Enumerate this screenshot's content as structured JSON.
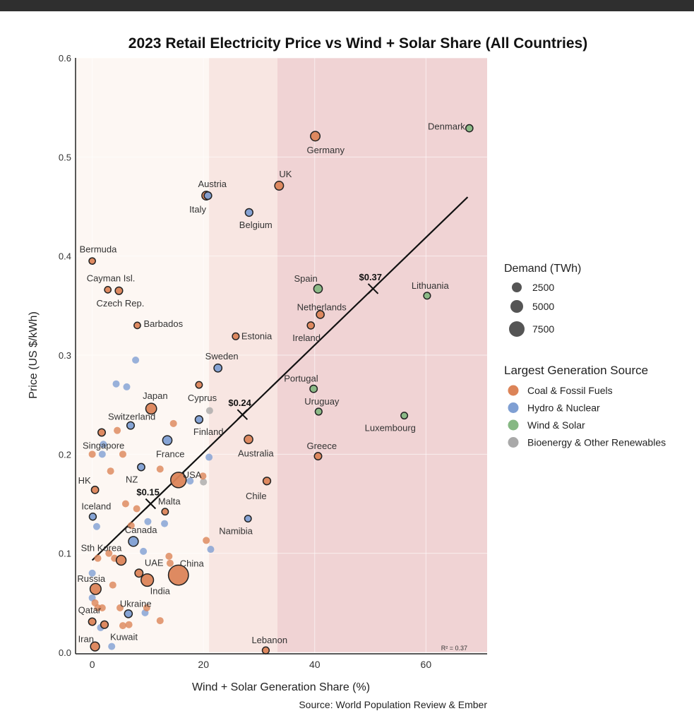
{
  "chart_data": {
    "type": "scatter",
    "title": "2023 Retail Electricity Price vs Wind + Solar Share (All Countries)",
    "xlabel": "Wind + Solar Generation Share (%)",
    "ylabel": "Price (US $/kWh)",
    "source": "Source: World Population Review & Ember",
    "xlim": [
      -3,
      71
    ],
    "ylim": [
      0,
      0.6
    ],
    "xticks": [
      0,
      20,
      40,
      60
    ],
    "yticks": [
      0.0,
      0.1,
      0.2,
      0.3,
      0.4,
      0.5,
      0.6
    ],
    "ytick_labels": [
      "0.0",
      "0.1",
      "0.2",
      "0.3",
      "0.4",
      "0.5",
      "0.6"
    ],
    "grid": true,
    "background_bands": [
      {
        "from": -3,
        "to": 21,
        "color": "#fdf7f3"
      },
      {
        "from": 21,
        "to": 33.3,
        "color": "#f8e6e2"
      },
      {
        "from": 33.3,
        "to": 71,
        "color": "#f0d3d4"
      }
    ],
    "colors": {
      "coal": "#dc8458",
      "hydro": "#7f9fd3",
      "wind": "#86b883",
      "bio": "#a9a9a9"
    },
    "legend": {
      "size_title": "Demand (TWh)",
      "sizes": [
        {
          "label": "2500",
          "value": 2500
        },
        {
          "label": "5000",
          "value": 5000
        },
        {
          "label": "7500",
          "value": 7500
        }
      ],
      "color_title": "Largest Generation Source",
      "colors": [
        {
          "key": "coal",
          "label": "Coal & Fossil Fuels"
        },
        {
          "key": "hydro",
          "label": "Hydro & Nuclear"
        },
        {
          "key": "wind",
          "label": "Wind & Solar"
        },
        {
          "key": "bio",
          "label": "Bioenergy & Other Renewables"
        }
      ],
      "placement": "right"
    },
    "trendline": {
      "slope": 0.00543,
      "intercept": 0.093,
      "x_range": [
        0,
        67.5
      ],
      "r2_label": "R² = 0.37"
    },
    "trend_markers": [
      {
        "x": 10.5,
        "y": 0.15,
        "label": "$0.15"
      },
      {
        "x": 27,
        "y": 0.24,
        "label": "$0.24"
      },
      {
        "x": 50.5,
        "y": 0.367,
        "label": "$0.37"
      }
    ],
    "points": [
      {
        "name": "Denmark",
        "x": 67.8,
        "y": 0.529,
        "src": "wind",
        "d": 35,
        "lx": -6,
        "ly": 2,
        "anchor": "end"
      },
      {
        "name": "Germany",
        "x": 40.1,
        "y": 0.521,
        "src": "coal",
        "d": 500,
        "lx": -12,
        "ly": 24,
        "anchor": "start"
      },
      {
        "name": "UK",
        "x": 33.6,
        "y": 0.471,
        "src": "coal",
        "d": 300,
        "lx": 0,
        "ly": -12,
        "anchor": "start"
      },
      {
        "name": "Italy",
        "x": 20.5,
        "y": 0.461,
        "src": "coal",
        "d": 300,
        "lx": -24,
        "ly": 24,
        "anchor": "start"
      },
      {
        "name": "Austria",
        "x": 20.8,
        "y": 0.461,
        "src": "hydro",
        "d": 70,
        "lx": -14,
        "ly": -12,
        "anchor": "start"
      },
      {
        "name": "Belgium",
        "x": 28.2,
        "y": 0.444,
        "src": "hydro",
        "d": 85,
        "lx": -14,
        "ly": 22,
        "anchor": "start"
      },
      {
        "name": "Bermuda",
        "x": 0,
        "y": 0.395,
        "src": "coal",
        "d": 1,
        "lx": -18,
        "ly": -12,
        "anchor": "start"
      },
      {
        "name": "Cayman Isl.",
        "x": 2.8,
        "y": 0.366,
        "src": "coal",
        "d": 1,
        "lx": -30,
        "ly": -12,
        "anchor": "start"
      },
      {
        "name": "Czech Rep.",
        "x": 4.8,
        "y": 0.365,
        "src": "coal",
        "d": 65,
        "lx": -32,
        "ly": 22,
        "anchor": "start"
      },
      {
        "name": "Barbados",
        "x": 8.1,
        "y": 0.33,
        "src": "coal",
        "d": 1,
        "lx": 9,
        "ly": 2,
        "anchor": "start"
      },
      {
        "name": "Estonia",
        "x": 25.8,
        "y": 0.319,
        "src": "coal",
        "d": 8,
        "lx": 8,
        "ly": 4,
        "anchor": "start"
      },
      {
        "name": "Sweden",
        "x": 22.6,
        "y": 0.287,
        "src": "hydro",
        "d": 130,
        "lx": -18,
        "ly": -12,
        "anchor": "start"
      },
      {
        "name": "Spain",
        "x": 40.6,
        "y": 0.367,
        "src": "wind",
        "d": 250,
        "lx": -34,
        "ly": -10,
        "anchor": "start"
      },
      {
        "name": "Netherlands",
        "x": 41.0,
        "y": 0.341,
        "src": "coal",
        "d": 110,
        "lx": -33,
        "ly": -6,
        "anchor": "start"
      },
      {
        "name": "Ireland",
        "x": 39.3,
        "y": 0.33,
        "src": "coal",
        "d": 30,
        "lx": -26,
        "ly": 22,
        "anchor": "start"
      },
      {
        "name": "Lithuania",
        "x": 60.2,
        "y": 0.36,
        "src": "wind",
        "d": 12,
        "lx": -22,
        "ly": -10,
        "anchor": "start"
      },
      {
        "name": "Portugal",
        "x": 39.8,
        "y": 0.266,
        "src": "wind",
        "d": 50,
        "lx": -42,
        "ly": -10,
        "anchor": "start"
      },
      {
        "name": "Uruguay",
        "x": 40.7,
        "y": 0.243,
        "src": "wind",
        "d": 12,
        "lx": -20,
        "ly": -10,
        "anchor": "start"
      },
      {
        "name": "Luxembourg",
        "x": 56.1,
        "y": 0.239,
        "src": "wind",
        "d": 6,
        "lx": -56,
        "ly": 22,
        "anchor": "start"
      },
      {
        "name": "Greece",
        "x": 40.6,
        "y": 0.198,
        "src": "coal",
        "d": 50,
        "lx": -16,
        "ly": -10,
        "anchor": "start"
      },
      {
        "name": "Australia",
        "x": 28.1,
        "y": 0.215,
        "src": "coal",
        "d": 250,
        "lx": -15,
        "ly": 24,
        "anchor": "start"
      },
      {
        "name": "Chile",
        "x": 31.4,
        "y": 0.173,
        "src": "coal",
        "d": 80,
        "lx": -30,
        "ly": 26,
        "anchor": "start"
      },
      {
        "name": "Namibia",
        "x": 28.0,
        "y": 0.135,
        "src": "hydro",
        "d": 5,
        "lx": -41,
        "ly": 22,
        "anchor": "start"
      },
      {
        "name": "Lebanon",
        "x": 31.2,
        "y": 0.002,
        "src": "coal",
        "d": 15,
        "lx": -20,
        "ly": -10,
        "anchor": "start"
      },
      {
        "name": "Cyprus",
        "x": 19.2,
        "y": 0.27,
        "src": "coal",
        "d": 5,
        "lx": -16,
        "ly": 23,
        "anchor": "start"
      },
      {
        "name": "Japan",
        "x": 10.6,
        "y": 0.246,
        "src": "coal",
        "d": 1000,
        "lx": -12,
        "ly": -14,
        "anchor": "start"
      },
      {
        "name": "Switzerland",
        "x": 6.9,
        "y": 0.229,
        "src": "hydro",
        "d": 60,
        "lx": -32,
        "ly": -8,
        "anchor": "start"
      },
      {
        "name": "Finland",
        "x": 19.2,
        "y": 0.235,
        "src": "hydro",
        "d": 85,
        "lx": -8,
        "ly": 22,
        "anchor": "start"
      },
      {
        "name": "France",
        "x": 13.5,
        "y": 0.214,
        "src": "hydro",
        "d": 450,
        "lx": -16,
        "ly": 24,
        "anchor": "start"
      },
      {
        "name": "Singapore",
        "x": 1.7,
        "y": 0.222,
        "src": "coal",
        "d": 55,
        "lx": -27,
        "ly": 23,
        "anchor": "start"
      },
      {
        "name": "NZ",
        "x": 8.8,
        "y": 0.187,
        "src": "hydro",
        "d": 42,
        "lx": -22,
        "ly": 22,
        "anchor": "start"
      },
      {
        "name": "USA",
        "x": 15.5,
        "y": 0.174,
        "src": "coal",
        "d": 4200,
        "lx": 6,
        "ly": -3,
        "anchor": "start"
      },
      {
        "name": "HK",
        "x": 0.5,
        "y": 0.164,
        "src": "coal",
        "d": 45,
        "lx": -24,
        "ly": -9,
        "anchor": "start"
      },
      {
        "name": "Malta",
        "x": 13.1,
        "y": 0.142,
        "src": "coal",
        "d": 3,
        "lx": -10,
        "ly": -10,
        "anchor": "start"
      },
      {
        "name": "Iceland",
        "x": 0.1,
        "y": 0.137,
        "src": "hydro",
        "d": 20,
        "lx": -16,
        "ly": -10,
        "anchor": "start"
      },
      {
        "name": "Canada",
        "x": 7.4,
        "y": 0.112,
        "src": "hydro",
        "d": 600,
        "lx": -12,
        "ly": -12,
        "anchor": "start"
      },
      {
        "name": "Sth Korea",
        "x": 5.2,
        "y": 0.093,
        "src": "coal",
        "d": 600,
        "lx": -57,
        "ly": -13,
        "anchor": "start"
      },
      {
        "name": "UAE",
        "x": 8.4,
        "y": 0.08,
        "src": "coal",
        "d": 150,
        "lx": 8,
        "ly": -10,
        "anchor": "start"
      },
      {
        "name": "India",
        "x": 9.9,
        "y": 0.073,
        "src": "coal",
        "d": 1900,
        "lx": 4,
        "ly": 20,
        "anchor": "start"
      },
      {
        "name": "China",
        "x": 15.5,
        "y": 0.078,
        "src": "coal",
        "d": 9400,
        "lx": 2,
        "ly": -12,
        "anchor": "start"
      },
      {
        "name": "Russia",
        "x": 0.6,
        "y": 0.064,
        "src": "coal",
        "d": 1100,
        "lx": -26,
        "ly": -10,
        "anchor": "start"
      },
      {
        "name": "Ukraine",
        "x": 6.5,
        "y": 0.039,
        "src": "hydro",
        "d": 110,
        "lx": -12,
        "ly": -10,
        "anchor": "start"
      },
      {
        "name": "Qatar",
        "x": 0,
        "y": 0.031,
        "src": "coal",
        "d": 55,
        "lx": -20,
        "ly": -12,
        "anchor": "start"
      },
      {
        "name": "Kuwait",
        "x": 2.2,
        "y": 0.028,
        "src": "coal",
        "d": 75,
        "lx": 8,
        "ly": 22,
        "anchor": "start"
      },
      {
        "name": "Iran",
        "x": 0.5,
        "y": 0.006,
        "src": "coal",
        "d": 350,
        "lx": -24,
        "ly": -6,
        "anchor": "start"
      }
    ],
    "unlabeled_points": [
      {
        "x": 21.1,
        "y": 0.244,
        "src": "bio"
      },
      {
        "x": 20.0,
        "y": 0.172,
        "src": "bio"
      },
      {
        "x": 7.8,
        "y": 0.295,
        "src": "hydro"
      },
      {
        "x": 4.3,
        "y": 0.271,
        "src": "hydro"
      },
      {
        "x": 6.2,
        "y": 0.268,
        "src": "hydro"
      },
      {
        "x": 14.6,
        "y": 0.231,
        "src": "coal"
      },
      {
        "x": 4.5,
        "y": 0.224,
        "src": "coal"
      },
      {
        "x": 2.0,
        "y": 0.21,
        "src": "hydro"
      },
      {
        "x": 0,
        "y": 0.2,
        "src": "coal"
      },
      {
        "x": 1.8,
        "y": 0.2,
        "src": "hydro"
      },
      {
        "x": 5.5,
        "y": 0.2,
        "src": "coal"
      },
      {
        "x": 3.3,
        "y": 0.183,
        "src": "coal"
      },
      {
        "x": 12.2,
        "y": 0.185,
        "src": "coal"
      },
      {
        "x": 17.6,
        "y": 0.173,
        "src": "hydro"
      },
      {
        "x": 19.9,
        "y": 0.178,
        "src": "coal"
      },
      {
        "x": 21.0,
        "y": 0.197,
        "src": "hydro"
      },
      {
        "x": 6.0,
        "y": 0.15,
        "src": "coal"
      },
      {
        "x": 8.0,
        "y": 0.145,
        "src": "coal"
      },
      {
        "x": 7.0,
        "y": 0.128,
        "src": "coal"
      },
      {
        "x": 10.0,
        "y": 0.132,
        "src": "hydro"
      },
      {
        "x": 13.0,
        "y": 0.13,
        "src": "hydro"
      },
      {
        "x": 0.8,
        "y": 0.127,
        "src": "hydro"
      },
      {
        "x": 3.0,
        "y": 0.1,
        "src": "coal"
      },
      {
        "x": 4.0,
        "y": 0.095,
        "src": "coal"
      },
      {
        "x": 13.8,
        "y": 0.097,
        "src": "coal"
      },
      {
        "x": 9.2,
        "y": 0.102,
        "src": "hydro"
      },
      {
        "x": 20.5,
        "y": 0.113,
        "src": "coal"
      },
      {
        "x": 21.3,
        "y": 0.104,
        "src": "hydro"
      },
      {
        "x": 0,
        "y": 0.08,
        "src": "hydro"
      },
      {
        "x": 0,
        "y": 0.055,
        "src": "hydro"
      },
      {
        "x": 0.5,
        "y": 0.05,
        "src": "coal"
      },
      {
        "x": 1.0,
        "y": 0.045,
        "src": "coal"
      },
      {
        "x": 1.8,
        "y": 0.045,
        "src": "coal"
      },
      {
        "x": 5.0,
        "y": 0.045,
        "src": "coal"
      },
      {
        "x": 5.5,
        "y": 0.027,
        "src": "coal"
      },
      {
        "x": 6.6,
        "y": 0.028,
        "src": "coal"
      },
      {
        "x": 12.2,
        "y": 0.032,
        "src": "coal"
      },
      {
        "x": 9.5,
        "y": 0.04,
        "src": "hydro"
      },
      {
        "x": 9.8,
        "y": 0.045,
        "src": "coal"
      },
      {
        "x": 3.5,
        "y": 0.006,
        "src": "hydro"
      },
      {
        "x": 1.5,
        "y": 0.025,
        "src": "hydro"
      },
      {
        "x": 3.7,
        "y": 0.068,
        "src": "coal"
      },
      {
        "x": 14.0,
        "y": 0.09,
        "src": "coal"
      },
      {
        "x": 1.0,
        "y": 0.095,
        "src": "coal"
      }
    ]
  }
}
